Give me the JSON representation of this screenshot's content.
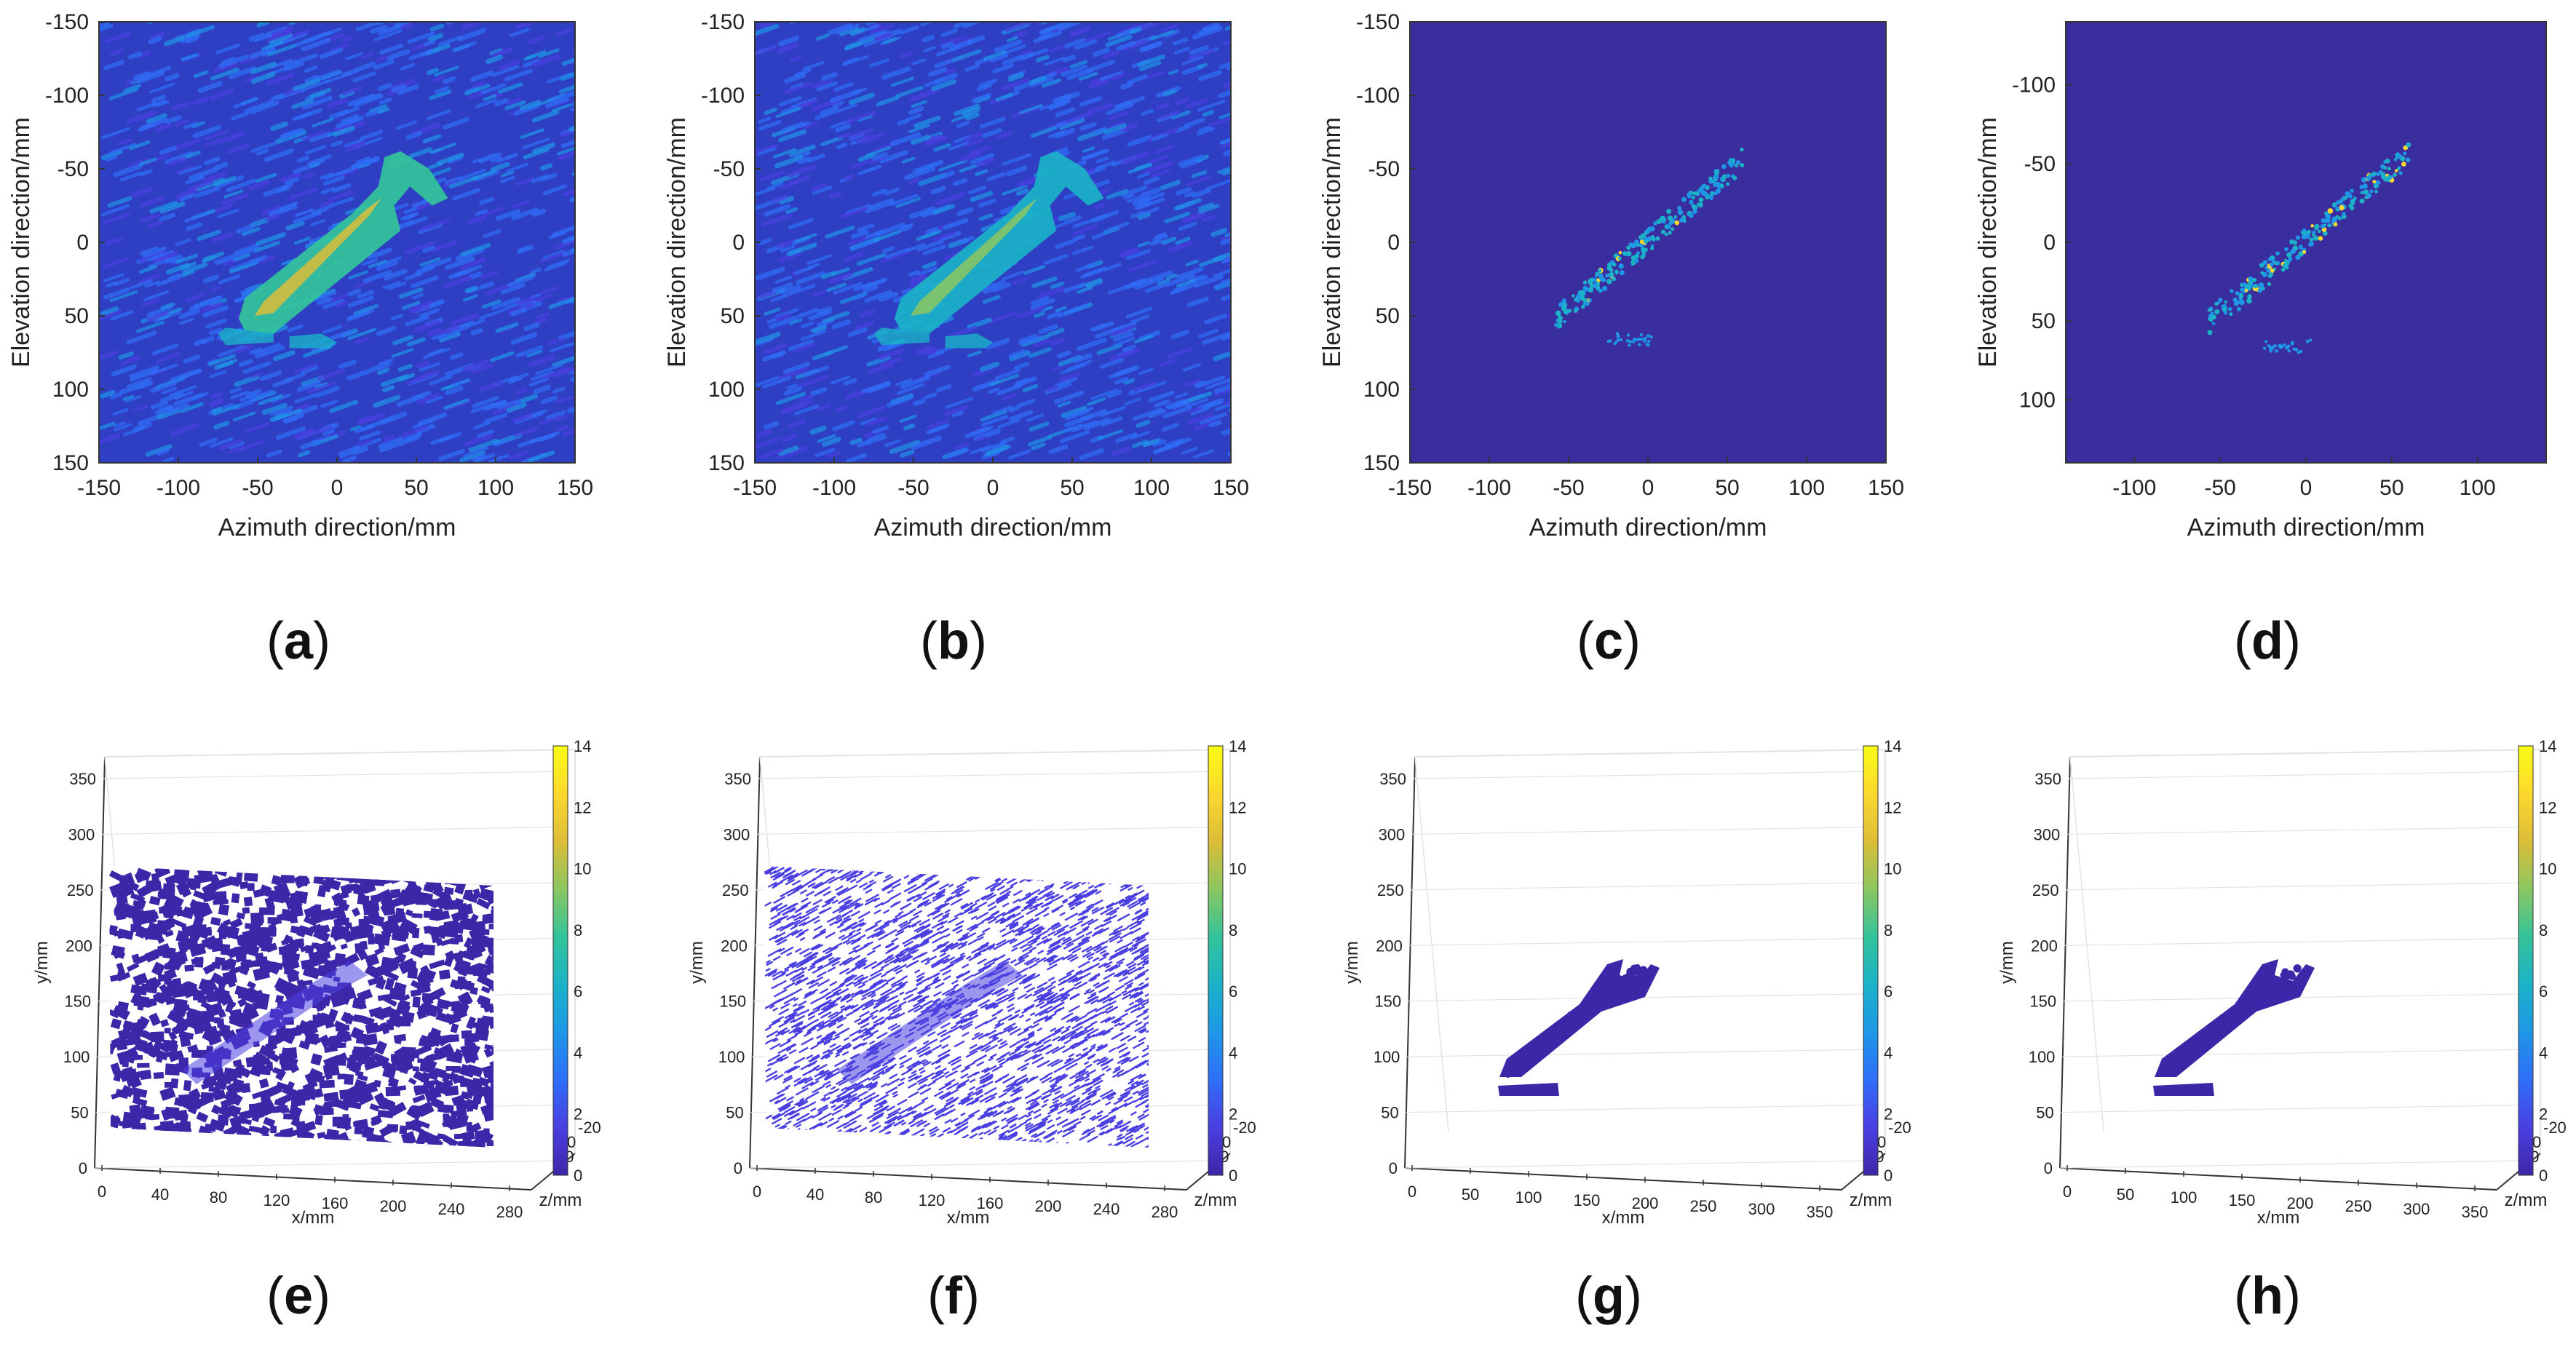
{
  "colors": {
    "bg_dark": "#3b2fa3",
    "parula": [
      "#3e26a8",
      "#4a3fe0",
      "#2f6ef8",
      "#1e97e6",
      "#1bb2c8",
      "#34c39a",
      "#8bc760",
      "#dcbd38",
      "#fcd82e",
      "#f9fb15"
    ],
    "axis": "#333333",
    "grid": "#e3e3e3"
  },
  "captions": [
    "(a)",
    "(b)",
    "(c)",
    "(d)",
    "(e)",
    "(f)",
    "(g)",
    "(h)"
  ],
  "chart_data": [
    {
      "type": "heatmap",
      "id": "a",
      "caption": "(a)",
      "title": "",
      "xlabel": "Azimuth direction/mm",
      "ylabel": "Elevation direction/mm",
      "xlim": [
        -150,
        150
      ],
      "ylim": [
        -150,
        150
      ],
      "xticks": [
        -150,
        -100,
        -50,
        0,
        50,
        100,
        150
      ],
      "yticks": [
        -150,
        -100,
        -50,
        0,
        50,
        100,
        150
      ],
      "noise": "high",
      "object_intensity": "high",
      "annotations": [
        "wrench target centered near (0, 0)"
      ]
    },
    {
      "type": "heatmap",
      "id": "b",
      "caption": "(b)",
      "title": "",
      "xlabel": "Azimuth direction/mm",
      "ylabel": "Elevation direction/mm",
      "xlim": [
        -150,
        150
      ],
      "ylim": [
        -150,
        150
      ],
      "xticks": [
        -150,
        -100,
        -50,
        0,
        50,
        100,
        150
      ],
      "yticks": [
        -150,
        -100,
        -50,
        0,
        50,
        100,
        150
      ],
      "noise": "high",
      "object_intensity": "medium",
      "annotations": [
        "wrench target centered near (0, 0)"
      ]
    },
    {
      "type": "heatmap",
      "id": "c",
      "caption": "(c)",
      "title": "",
      "xlabel": "Azimuth direction/mm",
      "ylabel": "Elevation direction/mm",
      "xlim": [
        -150,
        150
      ],
      "ylim": [
        -150,
        150
      ],
      "xticks": [
        -150,
        -100,
        -50,
        0,
        50,
        100,
        150
      ],
      "yticks": [
        -150,
        -100,
        -50,
        0,
        50,
        100,
        150
      ],
      "noise": "none",
      "object_intensity": "sparse",
      "annotations": [
        "sparse wrench reconstruction"
      ]
    },
    {
      "type": "heatmap",
      "id": "d",
      "caption": "(d)",
      "title": "",
      "xlabel": "Azimuth direction/mm",
      "ylabel": "Elevation direction/mm",
      "xlim": [
        -140,
        140
      ],
      "ylim": [
        -140,
        140
      ],
      "xticks": [
        -100,
        -50,
        0,
        50,
        100
      ],
      "yticks": [
        -100,
        -50,
        0,
        50,
        100
      ],
      "noise": "none",
      "object_intensity": "sparse",
      "annotations": [
        "sparse wrench reconstruction"
      ]
    },
    {
      "type": "scatter",
      "id": "e",
      "caption": "(e)",
      "xlabel": "x/mm",
      "ylabel": "y/mm",
      "zlabel": "z/mm",
      "xticks": [
        0,
        40,
        80,
        120,
        160,
        200,
        240,
        280
      ],
      "yticks": [
        0,
        50,
        100,
        150,
        200,
        250,
        300,
        350
      ],
      "zticks": [
        -20,
        0,
        20
      ],
      "colorbar_ticks": [
        0,
        2,
        4,
        6,
        8,
        10,
        12,
        14
      ],
      "clim": [
        0,
        14
      ],
      "cloud": "dense-noise"
    },
    {
      "type": "scatter",
      "id": "f",
      "caption": "(f)",
      "xlabel": "x/mm",
      "ylabel": "y/mm",
      "zlabel": "z/mm",
      "xticks": [
        0,
        40,
        80,
        120,
        160,
        200,
        240,
        280
      ],
      "yticks": [
        0,
        50,
        100,
        150,
        200,
        250,
        300,
        350
      ],
      "zticks": [
        -20,
        0,
        20
      ],
      "colorbar_ticks": [
        0,
        2,
        4,
        6,
        8,
        10,
        12,
        14
      ],
      "clim": [
        0,
        14
      ],
      "cloud": "fine-noise"
    },
    {
      "type": "scatter",
      "id": "g",
      "caption": "(g)",
      "xlabel": "x/mm",
      "ylabel": "y/mm",
      "zlabel": "z/mm",
      "xticks": [
        0,
        50,
        100,
        150,
        200,
        250,
        300,
        350
      ],
      "yticks": [
        0,
        50,
        100,
        150,
        200,
        250,
        300,
        350
      ],
      "zticks": [
        -20,
        0,
        20
      ],
      "colorbar_ticks": [
        0,
        2,
        4,
        6,
        8,
        10,
        12,
        14
      ],
      "clim": [
        0,
        14
      ],
      "cloud": "wrench-only"
    },
    {
      "type": "scatter",
      "id": "h",
      "caption": "(h)",
      "xlabel": "x/mm",
      "ylabel": "y/mm",
      "zlabel": "z/mm",
      "xticks": [
        0,
        50,
        100,
        150,
        200,
        250,
        300,
        350
      ],
      "yticks": [
        0,
        50,
        100,
        150,
        200,
        250,
        300,
        350
      ],
      "zticks": [
        -20,
        0,
        20
      ],
      "colorbar_ticks": [
        0,
        2,
        4,
        6,
        8,
        10,
        12,
        14
      ],
      "clim": [
        0,
        14
      ],
      "cloud": "wrench-only"
    }
  ]
}
